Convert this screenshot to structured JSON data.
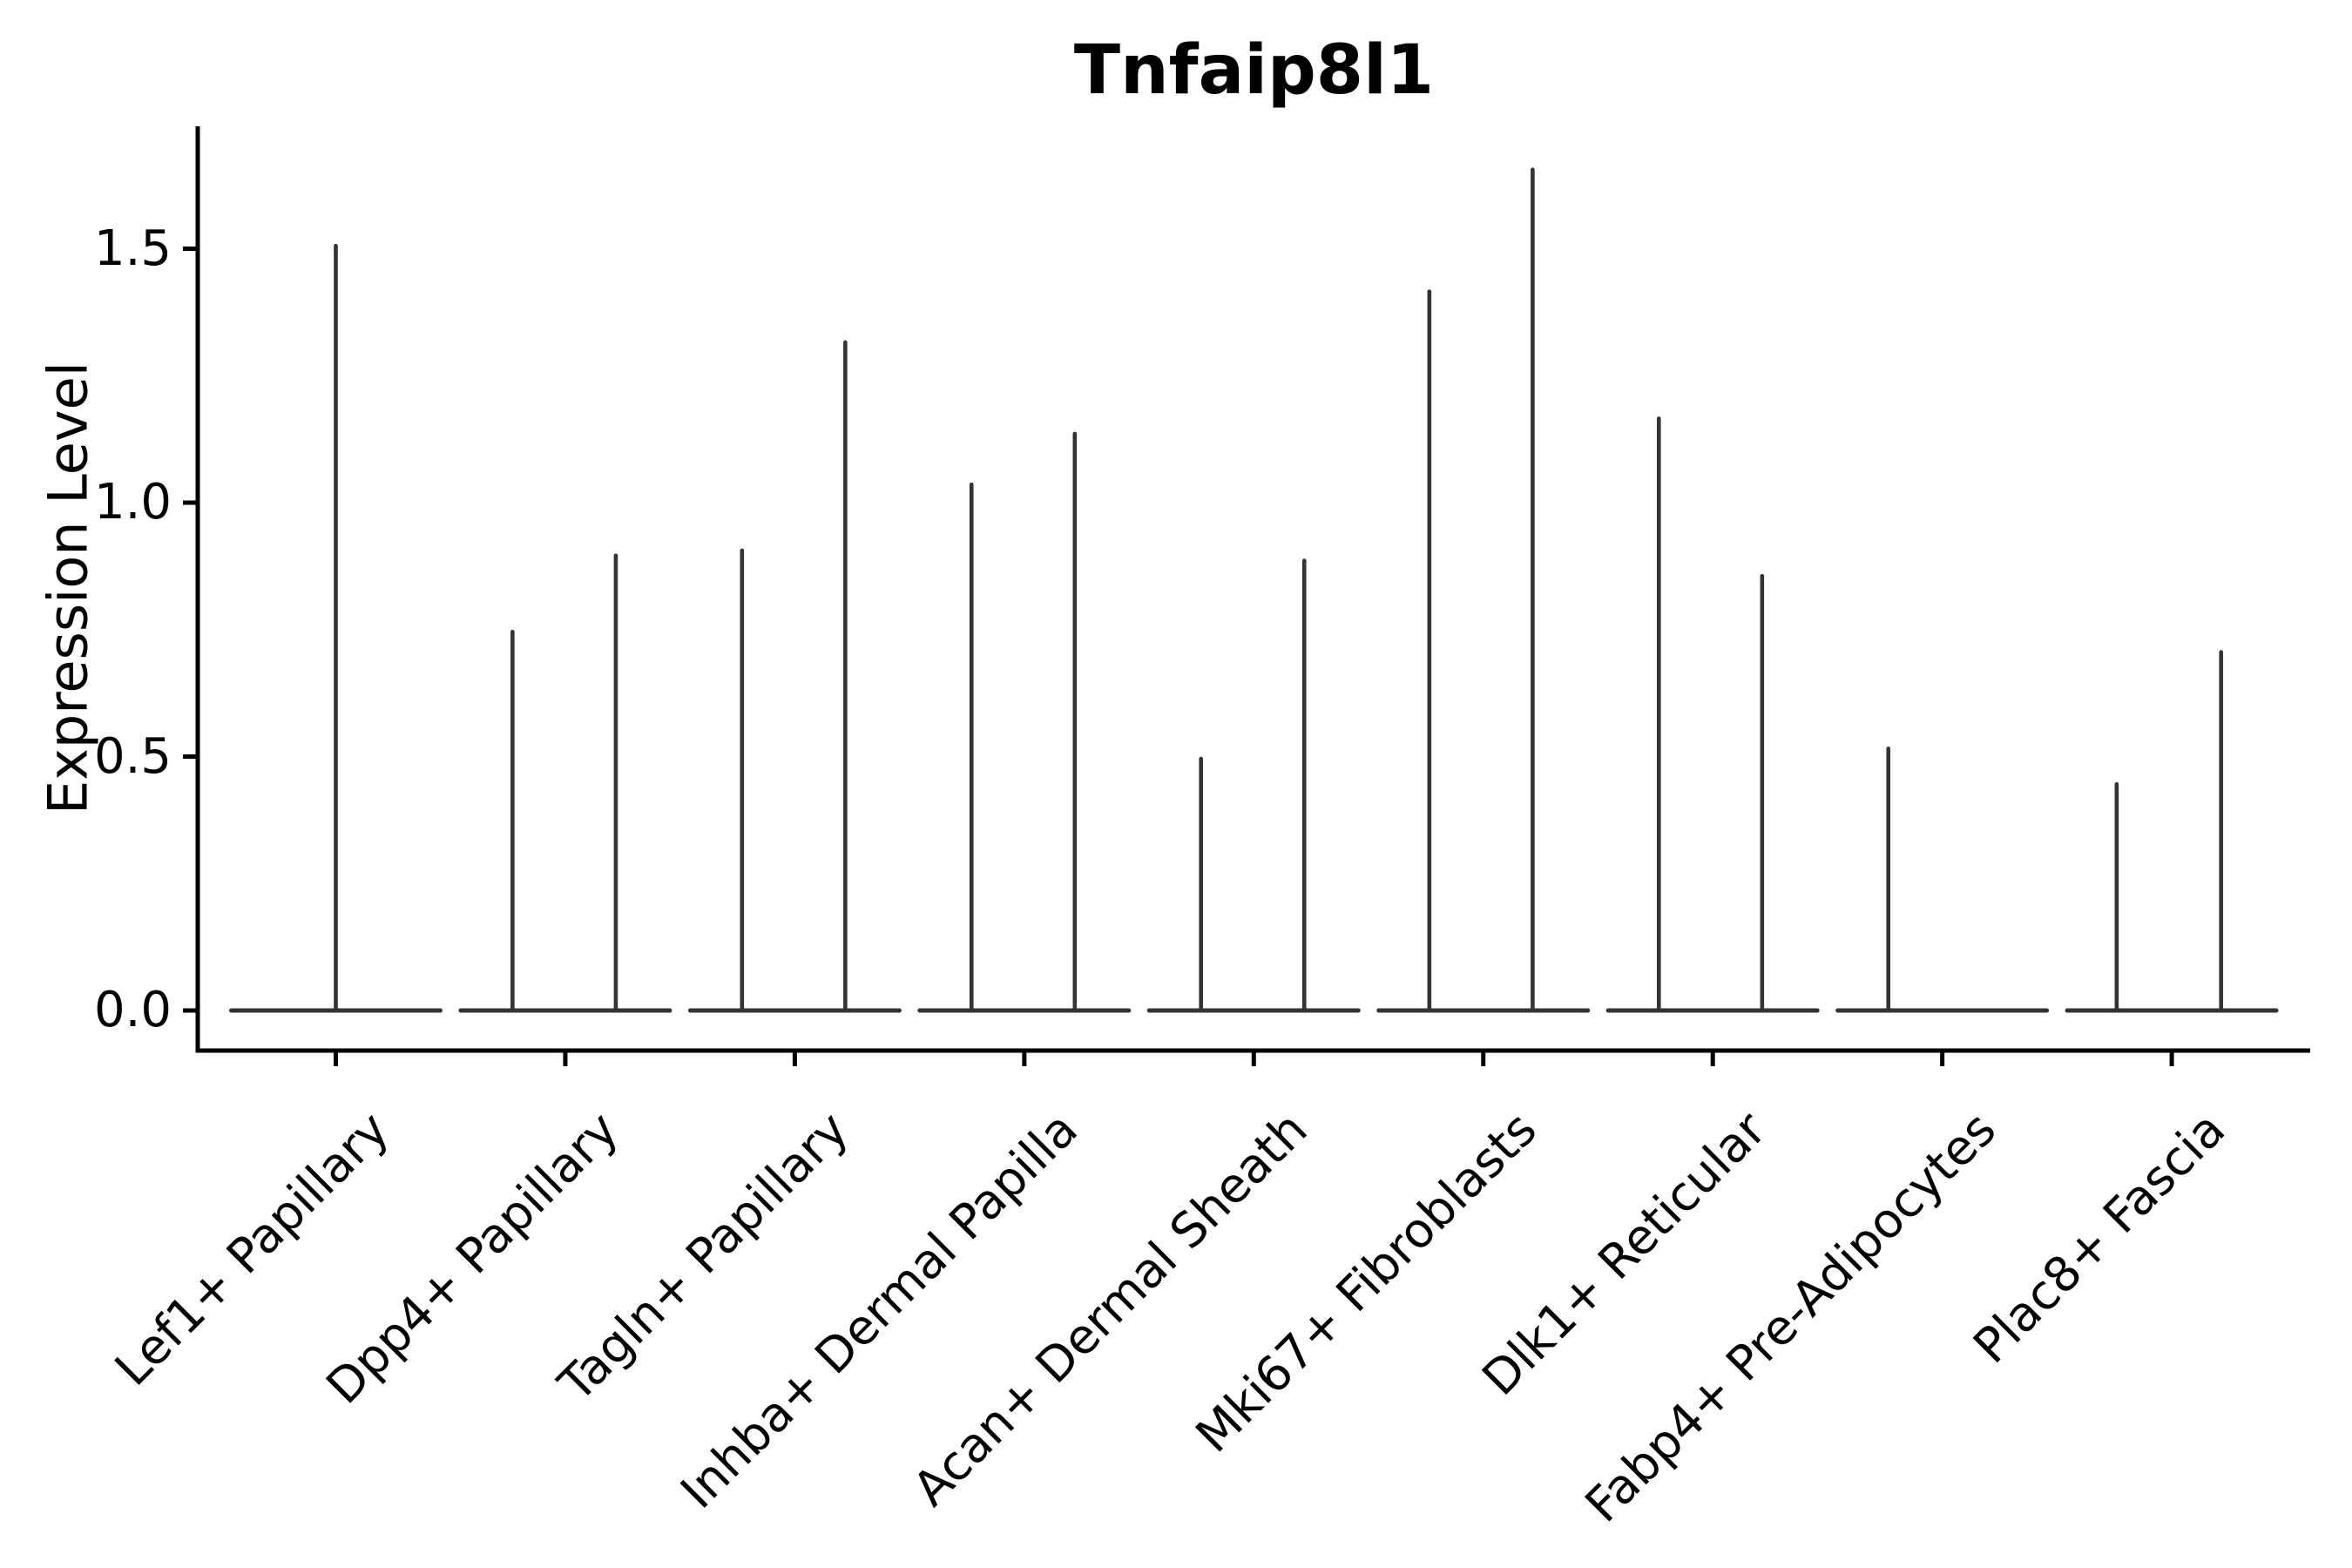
{
  "title": "Tnfaip8l1",
  "y_axis": {
    "label": "Expression Level",
    "tick_labels": [
      "0.0",
      "0.5",
      "1.0",
      "1.5"
    ]
  },
  "chart_data": {
    "type": "violin",
    "title": "Tnfaip8l1",
    "xlabel": "",
    "ylabel": "Expression Level",
    "ylim": [
      -0.08,
      1.74
    ],
    "yticks": [
      0.0,
      0.5,
      1.0,
      1.5
    ],
    "grid": false,
    "legend": null,
    "categories": [
      "Lef1+ Papillary",
      "Dpp4+ Papillary",
      "Tagln+ Papillary",
      "Inhba+ Dermal Papilla",
      "Acan+ Dermal Sheath",
      "Mki67+ Fibroblasts",
      "Dlk1+ Reticular",
      "Fabp4+ Pre-Adipocytes",
      "Plac8+ Fascia"
    ],
    "groups": [
      {
        "category": "Lef1+ Papillary",
        "violins": [
          {
            "offset": 0.0,
            "peak": 1.51
          }
        ]
      },
      {
        "category": "Dpp4+ Papillary",
        "violins": [
          {
            "offset": -0.23,
            "peak": 0.75
          },
          {
            "offset": 0.22,
            "peak": 0.9
          }
        ]
      },
      {
        "category": "Tagln+ Papillary",
        "violins": [
          {
            "offset": -0.23,
            "peak": 0.91
          },
          {
            "offset": 0.22,
            "peak": 1.32
          }
        ]
      },
      {
        "category": "Inhba+ Dermal Papilla",
        "violins": [
          {
            "offset": -0.23,
            "peak": 1.04
          },
          {
            "offset": 0.22,
            "peak": 1.14
          }
        ]
      },
      {
        "category": "Acan+ Dermal Sheath",
        "violins": [
          {
            "offset": -0.23,
            "peak": 0.5
          },
          {
            "offset": 0.22,
            "peak": 0.89
          }
        ]
      },
      {
        "category": "Mki67+ Fibroblasts",
        "violins": [
          {
            "offset": -0.235,
            "peak": 1.42
          },
          {
            "offset": 0.215,
            "peak": 1.66
          }
        ]
      },
      {
        "category": "Dlk1+ Reticular",
        "violins": [
          {
            "offset": -0.235,
            "peak": 1.17
          },
          {
            "offset": 0.215,
            "peak": 0.86
          }
        ]
      },
      {
        "category": "Fabp4+ Pre-Adipocytes",
        "violins": [
          {
            "offset": -0.235,
            "peak": 0.52
          }
        ]
      },
      {
        "category": "Plac8+ Fascia",
        "violins": [
          {
            "offset": -0.24,
            "peak": 0.45
          },
          {
            "offset": 0.215,
            "peak": 0.71
          }
        ]
      }
    ],
    "baseline_value": 0.0,
    "colors": {
      "violin_stroke": "#333333",
      "axis": "#000000",
      "text": "#000000"
    }
  }
}
